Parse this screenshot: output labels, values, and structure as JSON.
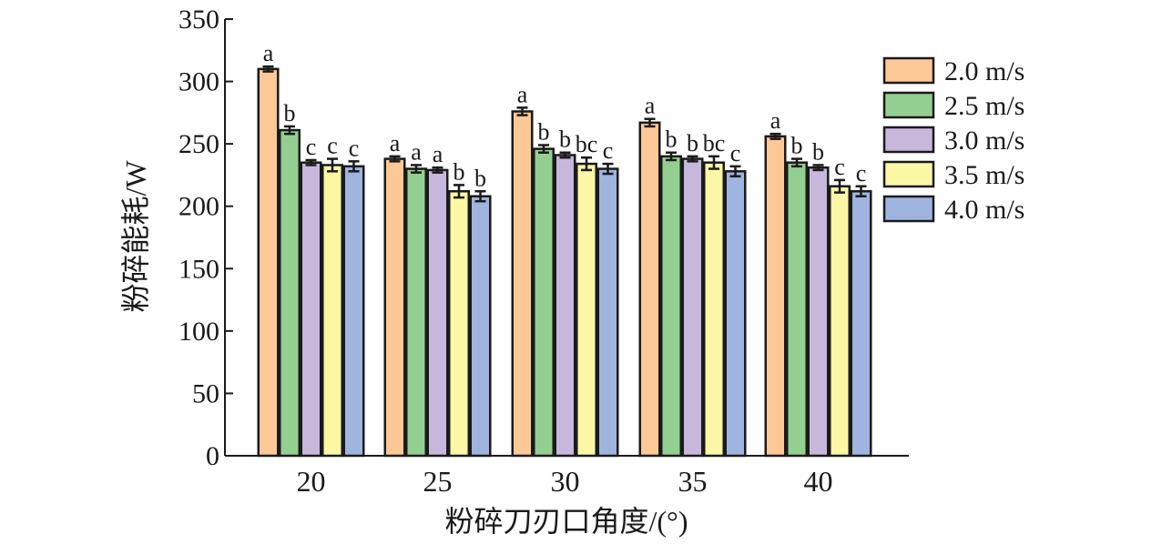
{
  "chart_data": {
    "type": "bar",
    "title": "",
    "xlabel": "粉碎刀刃口角度/(°)",
    "ylabel": "粉碎能耗/W",
    "ylim": [
      0,
      350
    ],
    "yticks": [
      0,
      50,
      100,
      150,
      200,
      250,
      300,
      350
    ],
    "grid": false,
    "legend_position": "top-right",
    "categories": [
      "20",
      "25",
      "30",
      "35",
      "40"
    ],
    "series": [
      {
        "name": "2.0 m/s",
        "color": "#FBC896",
        "values": [
          310,
          238,
          276,
          267,
          256
        ],
        "errors": [
          2,
          2,
          3,
          3,
          2
        ],
        "significance": [
          "a",
          "a",
          "a",
          "a",
          "a"
        ]
      },
      {
        "name": "2.5 m/s",
        "color": "#94CF92",
        "values": [
          261,
          230,
          246,
          240,
          235
        ],
        "errors": [
          3,
          3,
          3,
          3,
          3
        ],
        "significance": [
          "b",
          "a",
          "b",
          "b",
          "b"
        ]
      },
      {
        "name": "3.0 m/s",
        "color": "#C7B7DB",
        "values": [
          235,
          229,
          241,
          238,
          231
        ],
        "errors": [
          2,
          2,
          2,
          2,
          2
        ],
        "significance": [
          "c",
          "a",
          "b",
          "b",
          "b"
        ]
      },
      {
        "name": "3.5 m/s",
        "color": "#FBF7A5",
        "values": [
          233,
          212,
          234,
          235,
          216
        ],
        "errors": [
          5,
          5,
          5,
          5,
          5
        ],
        "significance": [
          "c",
          "b",
          "bc",
          "bc",
          "c"
        ]
      },
      {
        "name": "4.0 m/s",
        "color": "#9FB5DF",
        "values": [
          232,
          208,
          230,
          228,
          212
        ],
        "errors": [
          4,
          4,
          4,
          4,
          4
        ],
        "significance": [
          "c",
          "b",
          "c",
          "c",
          "c"
        ]
      }
    ]
  }
}
